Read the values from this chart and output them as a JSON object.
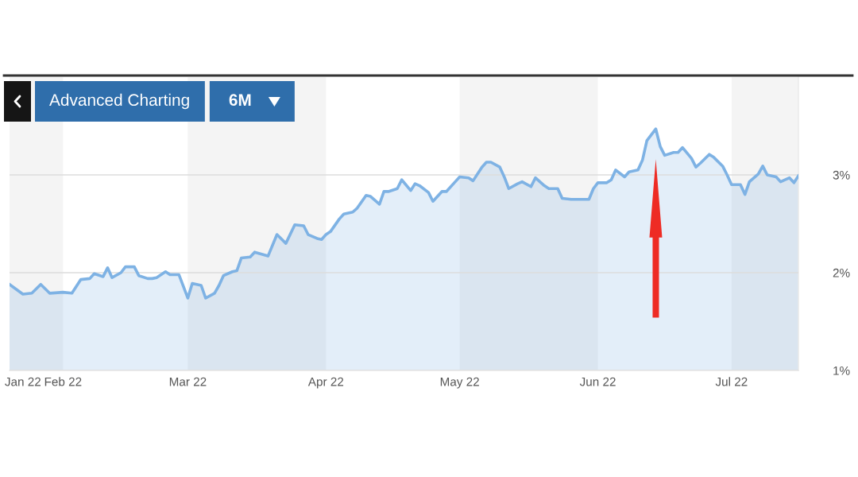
{
  "chart_data": {
    "type": "area",
    "x": [
      "2022-01-20",
      "2022-01-23",
      "2022-01-25",
      "2022-01-27",
      "2022-01-29",
      "2022-02-01",
      "2022-02-03",
      "2022-02-05",
      "2022-02-07",
      "2022-02-08",
      "2022-02-10",
      "2022-02-11",
      "2022-02-12",
      "2022-02-14",
      "2022-02-15",
      "2022-02-17",
      "2022-02-18",
      "2022-02-20",
      "2022-02-21",
      "2022-02-22",
      "2022-02-24",
      "2022-02-25",
      "2022-02-27",
      "2022-02-28",
      "2022-03-01",
      "2022-03-02",
      "2022-03-04",
      "2022-03-05",
      "2022-03-07",
      "2022-03-08",
      "2022-03-09",
      "2022-03-11",
      "2022-03-12",
      "2022-03-13",
      "2022-03-15",
      "2022-03-16",
      "2022-03-19",
      "2022-03-21",
      "2022-03-23",
      "2022-03-25",
      "2022-03-27",
      "2022-03-28",
      "2022-03-30",
      "2022-03-31",
      "2022-04-01",
      "2022-04-02",
      "2022-04-04",
      "2022-04-05",
      "2022-04-07",
      "2022-04-08",
      "2022-04-10",
      "2022-04-11",
      "2022-04-13",
      "2022-04-14",
      "2022-04-15",
      "2022-04-17",
      "2022-04-18",
      "2022-04-20",
      "2022-04-21",
      "2022-04-22",
      "2022-04-24",
      "2022-04-25",
      "2022-04-27",
      "2022-04-28",
      "2022-04-30",
      "2022-05-01",
      "2022-05-03",
      "2022-05-04",
      "2022-05-06",
      "2022-05-07",
      "2022-05-08",
      "2022-05-10",
      "2022-05-11",
      "2022-05-12",
      "2022-05-14",
      "2022-05-15",
      "2022-05-17",
      "2022-05-18",
      "2022-05-20",
      "2022-05-21",
      "2022-05-23",
      "2022-05-24",
      "2022-05-26",
      "2022-05-28",
      "2022-05-30",
      "2022-05-31",
      "2022-06-01",
      "2022-06-03",
      "2022-06-04",
      "2022-06-05",
      "2022-06-07",
      "2022-06-08",
      "2022-06-10",
      "2022-06-11",
      "2022-06-12",
      "2022-06-14",
      "2022-06-15",
      "2022-06-16",
      "2022-06-18",
      "2022-06-19",
      "2022-06-20",
      "2022-06-22",
      "2022-06-23",
      "2022-06-24",
      "2022-06-26",
      "2022-06-27",
      "2022-06-29",
      "2022-06-30",
      "2022-07-01",
      "2022-07-03",
      "2022-07-04",
      "2022-07-05",
      "2022-07-07",
      "2022-07-08",
      "2022-07-09",
      "2022-07-11",
      "2022-07-12",
      "2022-07-14",
      "2022-07-15",
      "2022-07-16"
    ],
    "values": [
      1.88,
      1.78,
      1.79,
      1.88,
      1.79,
      1.8,
      1.79,
      1.93,
      1.94,
      1.99,
      1.96,
      2.05,
      1.95,
      2.0,
      2.06,
      2.06,
      1.97,
      1.94,
      1.94,
      1.95,
      2.01,
      1.98,
      1.98,
      1.86,
      1.74,
      1.89,
      1.87,
      1.74,
      1.79,
      1.87,
      1.97,
      2.01,
      2.02,
      2.15,
      2.16,
      2.21,
      2.17,
      2.39,
      2.3,
      2.49,
      2.48,
      2.39,
      2.35,
      2.34,
      2.39,
      2.42,
      2.55,
      2.6,
      2.62,
      2.66,
      2.79,
      2.78,
      2.7,
      2.83,
      2.83,
      2.86,
      2.95,
      2.84,
      2.91,
      2.89,
      2.82,
      2.73,
      2.83,
      2.83,
      2.93,
      2.98,
      2.97,
      2.94,
      3.08,
      3.13,
      3.13,
      3.08,
      2.98,
      2.86,
      2.91,
      2.93,
      2.88,
      2.97,
      2.89,
      2.86,
      2.86,
      2.76,
      2.75,
      2.75,
      2.75,
      2.86,
      2.92,
      2.92,
      2.95,
      3.05,
      2.98,
      3.03,
      3.05,
      3.15,
      3.35,
      3.47,
      3.29,
      3.2,
      3.23,
      3.23,
      3.28,
      3.17,
      3.08,
      3.12,
      3.21,
      3.18,
      3.09,
      3.0,
      2.9,
      2.9,
      2.8,
      2.93,
      3.01,
      3.09,
      3.0,
      2.98,
      2.93,
      2.97,
      2.92,
      2.99
    ],
    "color": "#7eb2e4",
    "xlim": [
      "2022-01-20",
      "2022-07-16"
    ],
    "xticks": [
      {
        "value": "2022-01-23",
        "label": "Jan 22"
      },
      {
        "value": "2022-02-01",
        "label": "Feb 22"
      },
      {
        "value": "2022-03-01",
        "label": "Mar 22"
      },
      {
        "value": "2022-04-01",
        "label": "Apr 22"
      },
      {
        "value": "2022-05-01",
        "label": "May 22"
      },
      {
        "value": "2022-06-01",
        "label": "Jun 22"
      },
      {
        "value": "2022-07-01",
        "label": "Jul 22"
      }
    ],
    "ylim": [
      1,
      4
    ],
    "yticks": [
      {
        "value": 1,
        "label": "1%"
      },
      {
        "value": 2,
        "label": "2%"
      },
      {
        "value": 3,
        "label": "3%"
      }
    ],
    "grid": "y",
    "bands": [
      {
        "axis": "x",
        "from": "2022-01-20",
        "to": "2022-02-01",
        "color": "#f4f4f4"
      },
      {
        "axis": "x",
        "from": "2022-03-01",
        "to": "2022-04-01",
        "color": "#f4f4f4"
      },
      {
        "axis": "x",
        "from": "2022-05-01",
        "to": "2022-06-01",
        "color": "#f4f4f4"
      },
      {
        "axis": "x",
        "from": "2022-07-01",
        "to": "2022-07-16",
        "color": "#f4f4f4"
      }
    ],
    "annotations": [
      "Advanced Charting",
      "6M"
    ]
  }
}
